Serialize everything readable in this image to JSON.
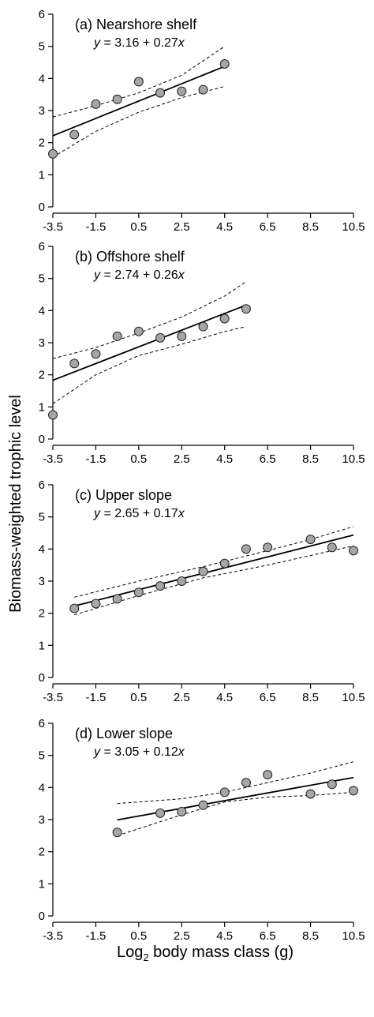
{
  "chart_data": {
    "type": "scatter",
    "ylabel": "Biomass-weighted trophic level",
    "xlabel_main": "Log",
    "xlabel_sub": "2",
    "xlabel_rest": " body mass class (g)",
    "xlim": [
      -3.5,
      10.5
    ],
    "ylim": [
      0,
      6
    ],
    "xticks": [
      "-3.5",
      "-1.5",
      "0.5",
      "2.5",
      "4.5",
      "6.5",
      "8.5",
      "10.5"
    ],
    "yticks": [
      "0",
      "1",
      "2",
      "3",
      "4",
      "5",
      "6"
    ],
    "point_color": "#a6a6a6",
    "panels": [
      {
        "title": "(a) Nearshore shelf",
        "eq_y": "y",
        "eq_mid": " =  3.16  +  0.27",
        "eq_x": "x",
        "intercept": 3.16,
        "slope": 0.27,
        "line_range": [
          -3.5,
          4.5
        ],
        "ci_upper": [
          [
            -3.5,
            2.8
          ],
          [
            -1.5,
            3.15
          ],
          [
            0.5,
            3.55
          ],
          [
            2.5,
            4.1
          ],
          [
            4.5,
            5.0
          ]
        ],
        "ci_lower": [
          [
            -3.5,
            1.55
          ],
          [
            -1.5,
            2.35
          ],
          [
            0.5,
            2.95
          ],
          [
            2.5,
            3.4
          ],
          [
            4.5,
            3.75
          ]
        ],
        "points": [
          [
            -3.5,
            1.65
          ],
          [
            -2.5,
            2.25
          ],
          [
            -1.5,
            3.2
          ],
          [
            -0.5,
            3.35
          ],
          [
            0.5,
            3.9
          ],
          [
            1.5,
            3.55
          ],
          [
            2.5,
            3.6
          ],
          [
            3.5,
            3.65
          ],
          [
            4.5,
            4.45
          ]
        ]
      },
      {
        "title": "(b) Offshore shelf",
        "eq_y": "y",
        "eq_mid": " =  2.74  +  0.26",
        "eq_x": "x",
        "intercept": 2.74,
        "slope": 0.26,
        "line_range": [
          -3.5,
          5.5
        ],
        "ci_upper": [
          [
            -3.5,
            2.5
          ],
          [
            -1.5,
            2.85
          ],
          [
            0.5,
            3.3
          ],
          [
            2.5,
            3.8
          ],
          [
            4.5,
            4.45
          ],
          [
            5.5,
            4.9
          ]
        ],
        "ci_lower": [
          [
            -3.5,
            1.1
          ],
          [
            -1.5,
            2.0
          ],
          [
            0.5,
            2.6
          ],
          [
            2.5,
            2.95
          ],
          [
            4.5,
            3.35
          ],
          [
            5.5,
            3.5
          ]
        ],
        "points": [
          [
            -3.5,
            0.75
          ],
          [
            -2.5,
            2.35
          ],
          [
            -1.5,
            2.65
          ],
          [
            -0.5,
            3.2
          ],
          [
            0.5,
            3.35
          ],
          [
            1.5,
            3.15
          ],
          [
            2.5,
            3.2
          ],
          [
            3.5,
            3.5
          ],
          [
            4.5,
            3.75
          ],
          [
            5.5,
            4.05
          ]
        ]
      },
      {
        "title": "(c) Upper slope",
        "eq_y": "y",
        "eq_mid": " =  2.65  +  0.17",
        "eq_x": "x",
        "intercept": 2.65,
        "slope": 0.17,
        "line_range": [
          -2.5,
          10.5
        ],
        "ci_upper": [
          [
            -2.5,
            2.5
          ],
          [
            0.5,
            3.0
          ],
          [
            3.5,
            3.45
          ],
          [
            6.5,
            3.95
          ],
          [
            8.5,
            4.3
          ],
          [
            10.5,
            4.7
          ]
        ],
        "ci_lower": [
          [
            -2.5,
            1.95
          ],
          [
            0.5,
            2.55
          ],
          [
            3.5,
            3.1
          ],
          [
            6.5,
            3.5
          ],
          [
            8.5,
            3.8
          ],
          [
            10.5,
            4.1
          ]
        ],
        "points": [
          [
            -2.5,
            2.15
          ],
          [
            -1.5,
            2.3
          ],
          [
            -0.5,
            2.45
          ],
          [
            0.5,
            2.65
          ],
          [
            1.5,
            2.85
          ],
          [
            2.5,
            3.0
          ],
          [
            3.5,
            3.3
          ],
          [
            4.5,
            3.55
          ],
          [
            5.5,
            4.0
          ],
          [
            6.5,
            4.05
          ],
          [
            8.5,
            4.3
          ],
          [
            9.5,
            4.05
          ],
          [
            10.5,
            3.95
          ]
        ]
      },
      {
        "title": "(d) Lower slope",
        "eq_y": "y",
        "eq_mid": " =  3.05  +  0.12",
        "eq_x": "x",
        "intercept": 3.05,
        "slope": 0.12,
        "line_range": [
          -0.5,
          10.5
        ],
        "ci_upper": [
          [
            -0.5,
            3.5
          ],
          [
            2.5,
            3.65
          ],
          [
            4.5,
            3.85
          ],
          [
            6.5,
            4.15
          ],
          [
            8.5,
            4.45
          ],
          [
            10.5,
            4.8
          ]
        ],
        "ci_lower": [
          [
            -0.5,
            2.5
          ],
          [
            2.5,
            3.15
          ],
          [
            4.5,
            3.55
          ],
          [
            6.5,
            3.7
          ],
          [
            8.5,
            3.75
          ],
          [
            10.5,
            3.85
          ]
        ],
        "points": [
          [
            -0.5,
            2.6
          ],
          [
            1.5,
            3.2
          ],
          [
            2.5,
            3.25
          ],
          [
            3.5,
            3.45
          ],
          [
            4.5,
            3.85
          ],
          [
            5.5,
            4.15
          ],
          [
            6.5,
            4.4
          ],
          [
            8.5,
            3.8
          ],
          [
            9.5,
            4.1
          ],
          [
            10.5,
            3.9
          ]
        ]
      }
    ]
  }
}
